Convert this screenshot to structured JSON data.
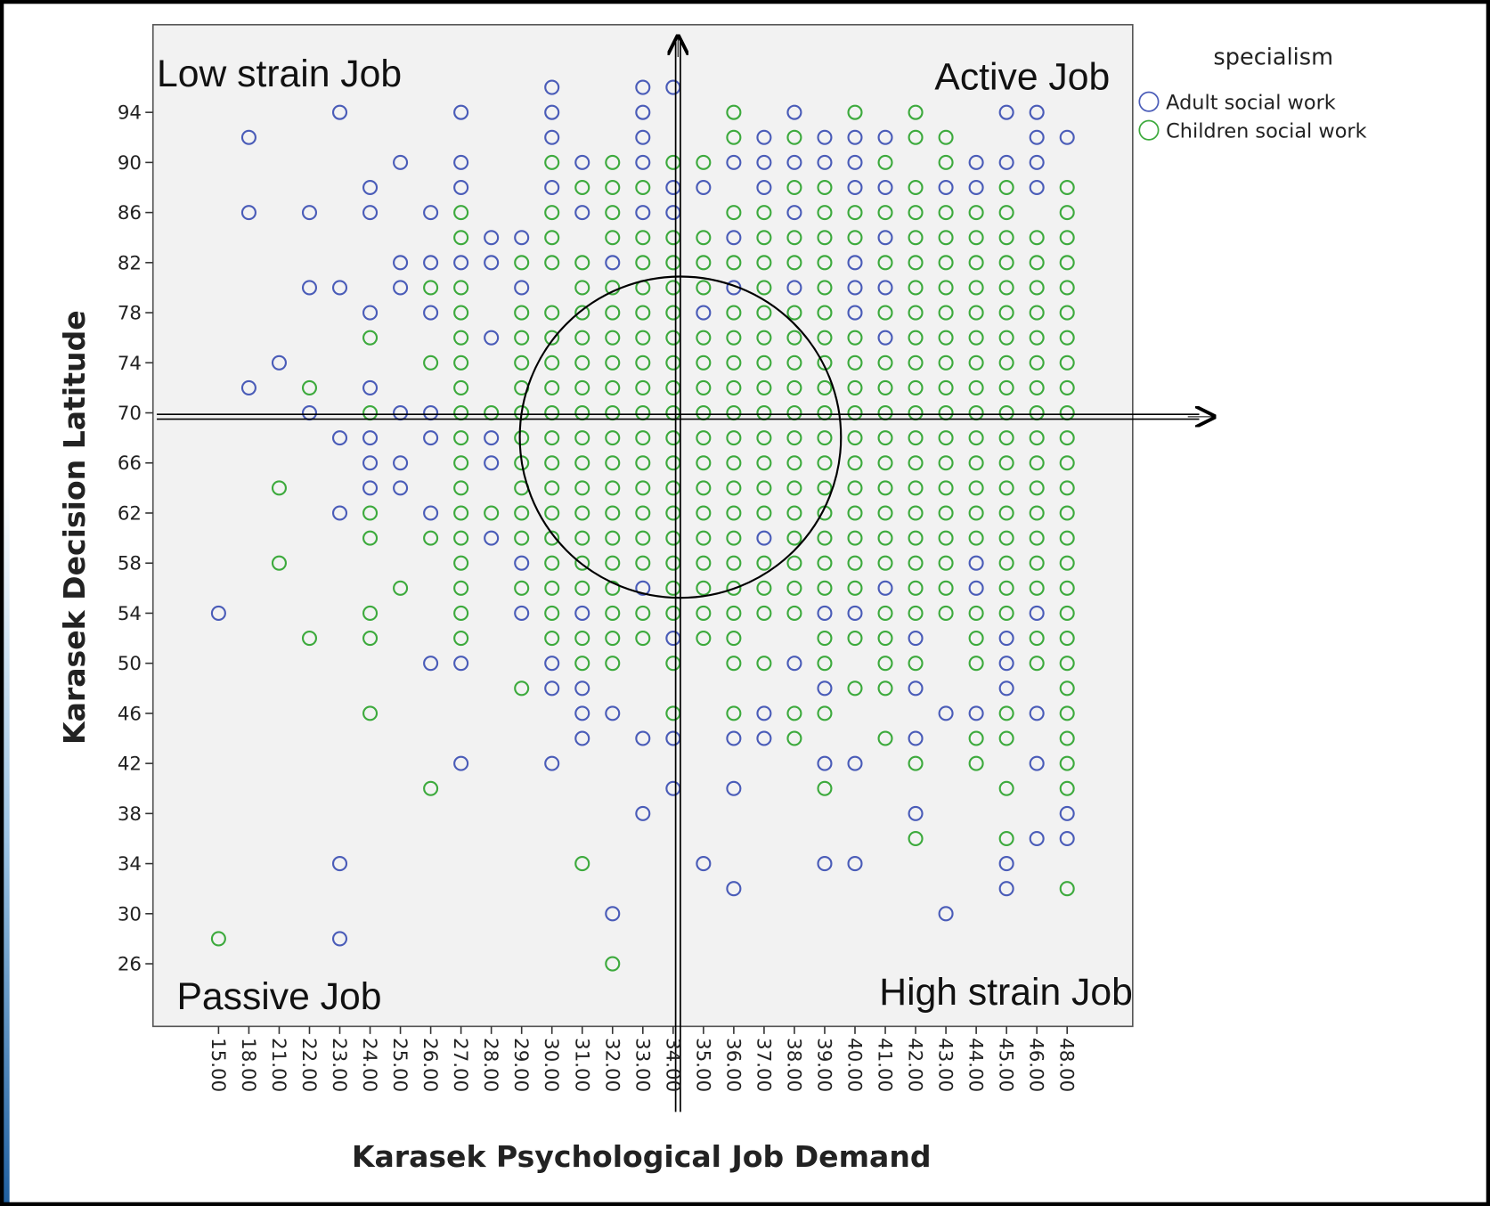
{
  "chart_data": {
    "type": "scatter",
    "x_label": "Karasek Psychological Job Demand",
    "y_label": "Karasek Decision Latitude",
    "legend_title": "specialism",
    "legend_position": "right",
    "annotations": [
      "Low strain Job",
      "Active Job",
      "Passive Job",
      "High strain Job"
    ],
    "categories": [
      "15.00",
      "18.00",
      "21.00",
      "22.00",
      "23.00",
      "24.00",
      "25.00",
      "26.00",
      "27.00",
      "28.00",
      "29.00",
      "30.00",
      "31.00",
      "32.00",
      "33.00",
      "34.00",
      "35.00",
      "36.00",
      "37.00",
      "38.00",
      "39.00",
      "40.00",
      "41.00",
      "42.00",
      "43.00",
      "44.00",
      "45.00",
      "46.00",
      "48.00"
    ],
    "ylim": [
      21,
      101
    ],
    "yticks": [
      26,
      30,
      34,
      38,
      42,
      46,
      50,
      54,
      58,
      62,
      66,
      70,
      74,
      78,
      82,
      86,
      90,
      94
    ],
    "series": [
      {
        "name": "Adult social work",
        "color": "#4a5cb8",
        "values": [
          [
            54
          ],
          [
            92,
            86,
            72
          ],
          [
            74
          ],
          [
            86,
            80,
            70
          ],
          [
            94,
            80,
            68,
            62,
            34,
            28
          ],
          [
            88,
            86,
            78,
            72,
            68,
            66,
            64
          ],
          [
            90,
            82,
            80,
            70,
            66,
            64
          ],
          [
            86,
            82,
            78,
            70,
            68,
            62,
            50
          ],
          [
            94,
            90,
            88,
            82,
            50,
            42
          ],
          [
            84,
            82,
            76,
            68,
            66,
            60
          ],
          [
            84,
            80,
            58,
            54
          ],
          [
            96,
            94,
            92,
            88,
            50,
            48,
            42
          ],
          [
            90,
            86,
            54,
            48,
            46,
            44
          ],
          [
            82,
            46,
            30
          ],
          [
            96,
            94,
            92,
            90,
            86,
            56,
            44,
            38
          ],
          [
            96,
            88,
            86,
            52,
            44,
            40
          ],
          [
            88,
            78,
            34
          ],
          [
            90,
            84,
            80,
            44,
            40,
            32
          ],
          [
            92,
            90,
            88,
            60,
            46,
            44
          ],
          [
            94,
            90,
            86,
            80,
            50
          ],
          [
            92,
            90,
            54,
            48,
            42,
            34
          ],
          [
            92,
            90,
            88,
            82,
            80,
            78,
            54,
            42,
            34
          ],
          [
            92,
            88,
            84,
            80,
            76,
            56
          ],
          [
            52,
            48,
            44,
            38
          ],
          [
            88,
            46,
            30
          ],
          [
            90,
            88,
            58,
            56,
            46
          ],
          [
            94,
            90,
            52,
            50,
            48,
            34,
            32
          ],
          [
            94,
            92,
            90,
            88,
            54,
            46,
            42,
            36
          ],
          [
            92,
            38,
            36
          ]
        ]
      },
      {
        "name": "Children social work",
        "color": "#3daa3d",
        "values": [
          [
            28
          ],
          [],
          [
            64,
            58
          ],
          [
            72,
            52
          ],
          [],
          [
            76,
            70,
            62,
            60,
            54,
            52,
            46
          ],
          [
            56
          ],
          [
            80,
            74,
            60,
            40
          ],
          [
            86,
            84,
            80,
            78,
            76,
            74,
            72,
            70,
            68,
            66,
            64,
            62,
            60,
            58,
            56,
            54,
            52
          ],
          [
            70,
            62
          ],
          [
            82,
            78,
            76,
            74,
            72,
            70,
            68,
            66,
            64,
            62,
            60,
            56,
            48
          ],
          [
            90,
            86,
            84,
            82,
            78,
            76,
            74,
            72,
            70,
            68,
            66,
            64,
            62,
            60,
            58,
            56,
            54,
            52
          ],
          [
            88,
            82,
            80,
            78,
            76,
            74,
            72,
            70,
            68,
            66,
            64,
            62,
            60,
            58,
            56,
            52,
            50,
            34
          ],
          [
            90,
            88,
            86,
            84,
            80,
            78,
            76,
            74,
            72,
            70,
            68,
            66,
            64,
            62,
            60,
            58,
            56,
            54,
            52,
            50,
            26
          ],
          [
            88,
            84,
            82,
            80,
            78,
            76,
            74,
            72,
            70,
            68,
            66,
            64,
            62,
            60,
            58,
            54,
            52
          ],
          [
            90,
            84,
            82,
            80,
            78,
            76,
            74,
            72,
            70,
            68,
            66,
            64,
            62,
            60,
            58,
            56,
            54,
            50,
            46
          ],
          [
            90,
            84,
            82,
            80,
            76,
            74,
            72,
            70,
            68,
            66,
            64,
            62,
            60,
            58,
            56,
            54,
            52
          ],
          [
            94,
            92,
            86,
            82,
            78,
            76,
            74,
            72,
            70,
            68,
            66,
            64,
            62,
            60,
            58,
            56,
            54,
            52,
            50,
            46
          ],
          [
            86,
            84,
            82,
            80,
            78,
            76,
            74,
            72,
            70,
            68,
            66,
            64,
            62,
            58,
            56,
            54,
            50
          ],
          [
            92,
            88,
            84,
            82,
            78,
            76,
            74,
            72,
            70,
            68,
            66,
            64,
            62,
            60,
            58,
            56,
            54,
            46,
            44
          ],
          [
            88,
            86,
            84,
            82,
            80,
            78,
            76,
            74,
            72,
            70,
            68,
            66,
            64,
            62,
            60,
            58,
            56,
            52,
            50,
            46,
            40
          ],
          [
            94,
            86,
            84,
            76,
            74,
            72,
            70,
            68,
            66,
            64,
            62,
            60,
            58,
            56,
            52,
            48
          ],
          [
            90,
            86,
            82,
            78,
            74,
            72,
            70,
            68,
            66,
            64,
            62,
            60,
            58,
            54,
            52,
            50,
            48,
            44
          ],
          [
            94,
            92,
            88,
            86,
            84,
            82,
            80,
            78,
            76,
            74,
            72,
            70,
            68,
            66,
            64,
            62,
            60,
            58,
            56,
            54,
            50,
            42,
            36
          ],
          [
            92,
            90,
            86,
            84,
            82,
            80,
            78,
            76,
            74,
            72,
            70,
            68,
            66,
            64,
            62,
            60,
            58,
            56,
            54
          ],
          [
            86,
            84,
            82,
            80,
            78,
            76,
            74,
            72,
            70,
            68,
            66,
            64,
            62,
            60,
            54,
            52,
            50,
            44,
            42
          ],
          [
            88,
            86,
            84,
            82,
            80,
            78,
            76,
            74,
            72,
            70,
            68,
            66,
            64,
            62,
            60,
            58,
            56,
            54,
            46,
            44,
            40,
            36
          ],
          [
            84,
            82,
            80,
            78,
            76,
            74,
            72,
            70,
            68,
            66,
            64,
            62,
            60,
            58,
            56,
            52,
            50
          ],
          [
            88,
            86,
            84,
            82,
            80,
            78,
            76,
            74,
            72,
            70,
            68,
            66,
            64,
            62,
            60,
            58,
            56,
            54,
            52,
            50,
            48,
            46,
            44,
            42,
            40,
            32
          ]
        ]
      }
    ]
  }
}
